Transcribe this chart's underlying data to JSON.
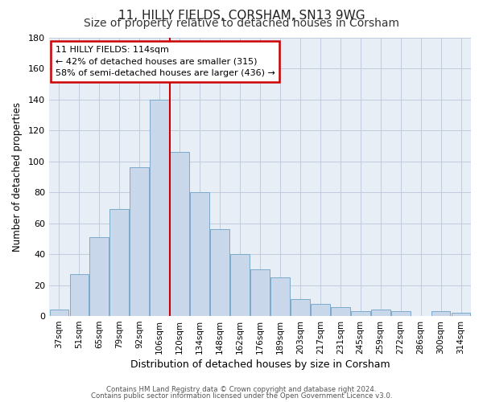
{
  "title": "11, HILLY FIELDS, CORSHAM, SN13 9WG",
  "subtitle": "Size of property relative to detached houses in Corsham",
  "xlabel": "Distribution of detached houses by size in Corsham",
  "ylabel": "Number of detached properties",
  "categories": [
    "37sqm",
    "51sqm",
    "65sqm",
    "79sqm",
    "92sqm",
    "106sqm",
    "120sqm",
    "134sqm",
    "148sqm",
    "162sqm",
    "176sqm",
    "189sqm",
    "203sqm",
    "217sqm",
    "231sqm",
    "245sqm",
    "259sqm",
    "272sqm",
    "286sqm",
    "300sqm",
    "314sqm"
  ],
  "values": [
    4,
    27,
    51,
    69,
    96,
    140,
    106,
    80,
    56,
    40,
    30,
    25,
    11,
    8,
    6,
    3,
    4,
    3,
    0,
    3,
    2
  ],
  "bar_color": "#c8d8ea",
  "bar_edge_color": "#7aaacc",
  "vline_x": 5.5,
  "vline_color": "#cc0000",
  "ylim": [
    0,
    180
  ],
  "yticks": [
    0,
    20,
    40,
    60,
    80,
    100,
    120,
    140,
    160,
    180
  ],
  "annotation_box_text": "11 HILLY FIELDS: 114sqm\n← 42% of detached houses are smaller (315)\n58% of semi-detached houses are larger (436) →",
  "annotation_box_color": "#cc0000",
  "footer_line1": "Contains HM Land Registry data © Crown copyright and database right 2024.",
  "footer_line2": "Contains public sector information licensed under the Open Government Licence v3.0.",
  "background_color": "#ffffff",
  "ax_background_color": "#e8eef6",
  "grid_color": "#c0ccdd",
  "title_fontsize": 11,
  "subtitle_fontsize": 10
}
